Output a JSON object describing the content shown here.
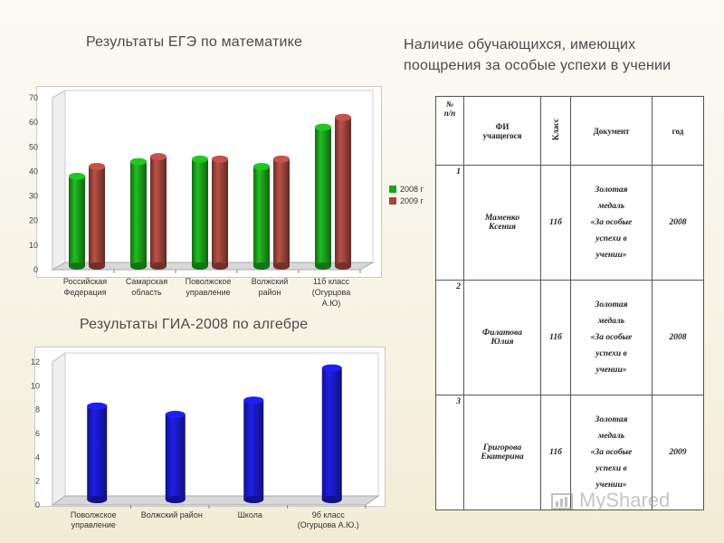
{
  "headings": {
    "ege": "Результаты ЕГЭ по математике",
    "right_line1": "Наличие обучающихся, имеющих",
    "right_line2": "поощрения за особые успехи в учении",
    "gia": "Результаты ГИА-2008 по алгебре"
  },
  "chart_data": [
    {
      "type": "bar",
      "categories": [
        [
          "Российская",
          "Федерация"
        ],
        [
          "Самарская",
          "область"
        ],
        [
          "Поволжское",
          "управление"
        ],
        [
          "Волжский",
          "район"
        ],
        [
          "11б класс",
          "(Огурцова",
          "А.Ю)"
        ]
      ],
      "series": [
        {
          "name": "2008 г",
          "values": [
            38,
            44,
            45,
            42,
            58
          ],
          "color": "#1ca51c"
        },
        {
          "name": "2009 г",
          "values": [
            42,
            46,
            45,
            45,
            62
          ],
          "color": "#a3463d"
        }
      ],
      "ylim": [
        0,
        70
      ],
      "yticks": [
        "0",
        "10",
        "20",
        "30",
        "40",
        "50",
        "60",
        "70"
      ],
      "grid": false,
      "legend": "right"
    },
    {
      "type": "bar",
      "categories": [
        [
          "Поволжское",
          "управление"
        ],
        [
          "Волжский район"
        ],
        [
          "Школа"
        ],
        [
          "9б класс",
          "(Огурцова А.Ю.)"
        ]
      ],
      "series": [
        {
          "values": [
            8.3,
            7.6,
            8.8,
            11.5
          ],
          "color": "#1a1acc"
        }
      ],
      "ylim": [
        0,
        12
      ],
      "yticks": [
        "0",
        "2",
        "4",
        "6",
        "8",
        "10",
        "12"
      ],
      "grid": false
    }
  ],
  "table": {
    "header": {
      "num_line1": "№",
      "num_line2": "п/п",
      "name_line1": "ФИ",
      "name_line2": "учащегося",
      "class": "Класс",
      "doc": "Документ",
      "year": "год"
    },
    "rows": [
      {
        "num": "1",
        "name1": "Маменко",
        "name2": "Ксения",
        "class": "11б",
        "doc1": "Золотая",
        "doc2": "медаль",
        "doc3": "«За особые",
        "doc4": "успехи в",
        "doc5": "учении»",
        "year": "2008"
      },
      {
        "num": "2",
        "name1": "Филатова",
        "name2": "Юлия",
        "class": "11б",
        "doc1": "Золотая",
        "doc2": "медаль",
        "doc3": "«За особые",
        "doc4": "успехи в",
        "doc5": "учении»",
        "year": "2008"
      },
      {
        "num": "3",
        "name1": "Григорова",
        "name2": "Екатерина",
        "class": "11б",
        "doc1": "Золотая",
        "doc2": "медаль",
        "doc3": "«За особые",
        "doc4": "успехи в",
        "doc5": "учении»",
        "year": "2009"
      }
    ]
  },
  "watermark": "MyShared"
}
